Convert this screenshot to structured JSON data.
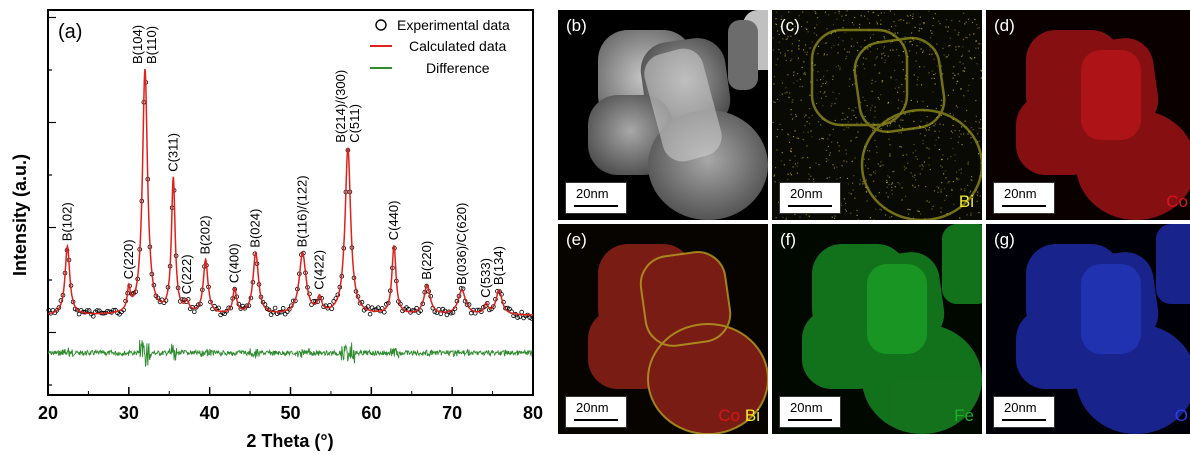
{
  "chart_data": {
    "type": "line",
    "panel_label": "(a)",
    "xlabel": "2 Theta (°)",
    "ylabel": "Intensity (a.u.)",
    "xlim": [
      20,
      80
    ],
    "xticks": [
      "20",
      "30",
      "40",
      "50",
      "60",
      "70",
      "80"
    ],
    "yticks_shown": false,
    "legend": {
      "placement": "top-right",
      "entries": [
        "Experimental data",
        "Calculated data",
        "Difference"
      ]
    },
    "series": [
      {
        "name": "Experimental data",
        "style": "open-circle",
        "color": "#000000"
      },
      {
        "name": "Calculated data",
        "style": "line",
        "color": "#e0201b"
      },
      {
        "name": "Difference",
        "style": "line",
        "color": "#2e8b2e"
      }
    ],
    "baseline": 0.1,
    "peaks": [
      {
        "x": 22.4,
        "h": 0.28,
        "w": 0.35,
        "label": "B(102)"
      },
      {
        "x": 30.0,
        "h": 0.09,
        "w": 0.22,
        "label": "C(220)"
      },
      {
        "x": 32.0,
        "h": 1.0,
        "w": 0.38,
        "label": "B(104)\nB(110)"
      },
      {
        "x": 35.5,
        "h": 0.55,
        "w": 0.28,
        "label": "C(311)"
      },
      {
        "x": 37.2,
        "h": 0.04,
        "w": 0.3,
        "label": "C(222)"
      },
      {
        "x": 39.5,
        "h": 0.22,
        "w": 0.35,
        "label": "B(202)"
      },
      {
        "x": 43.1,
        "h": 0.1,
        "w": 0.28,
        "label": "C(400)"
      },
      {
        "x": 45.7,
        "h": 0.25,
        "w": 0.4,
        "label": "B(024)"
      },
      {
        "x": 51.5,
        "h": 0.25,
        "w": 0.5,
        "label": "B(116)/(122)"
      },
      {
        "x": 53.6,
        "h": 0.06,
        "w": 0.3,
        "label": "C(422)"
      },
      {
        "x": 57.1,
        "h": 0.68,
        "w": 0.42,
        "label": "B(214)/(300)\nC(511)"
      },
      {
        "x": 62.8,
        "h": 0.28,
        "w": 0.3,
        "label": "C(440)"
      },
      {
        "x": 66.9,
        "h": 0.12,
        "w": 0.45,
        "label": "B(220)"
      },
      {
        "x": 71.2,
        "h": 0.1,
        "w": 0.55,
        "label": "B(036)/C(620)"
      },
      {
        "x": 74.2,
        "h": 0.04,
        "w": 0.3,
        "label": "C(533)"
      },
      {
        "x": 75.8,
        "h": 0.1,
        "w": 0.45,
        "label": "B(134)"
      }
    ]
  },
  "edx_panels": [
    {
      "label": "(b)",
      "scale_bar": "20nm",
      "element": "",
      "map": "HAADF"
    },
    {
      "label": "(c)",
      "scale_bar": "20nm",
      "element": "Bi",
      "color": "#f2ea2c"
    },
    {
      "label": "(d)",
      "scale_bar": "20nm",
      "element": "Co",
      "color": "#d9151b"
    },
    {
      "label": "(e)",
      "scale_bar": "20nm",
      "element": "Co",
      "element2": "Bi",
      "color": "#d9151b",
      "color2": "#f2ea2c"
    },
    {
      "label": "(f)",
      "scale_bar": "20nm",
      "element": "Fe",
      "color": "#1fae2a"
    },
    {
      "label": "(g)",
      "scale_bar": "20nm",
      "element": "O",
      "color": "#2c3ee6"
    }
  ]
}
